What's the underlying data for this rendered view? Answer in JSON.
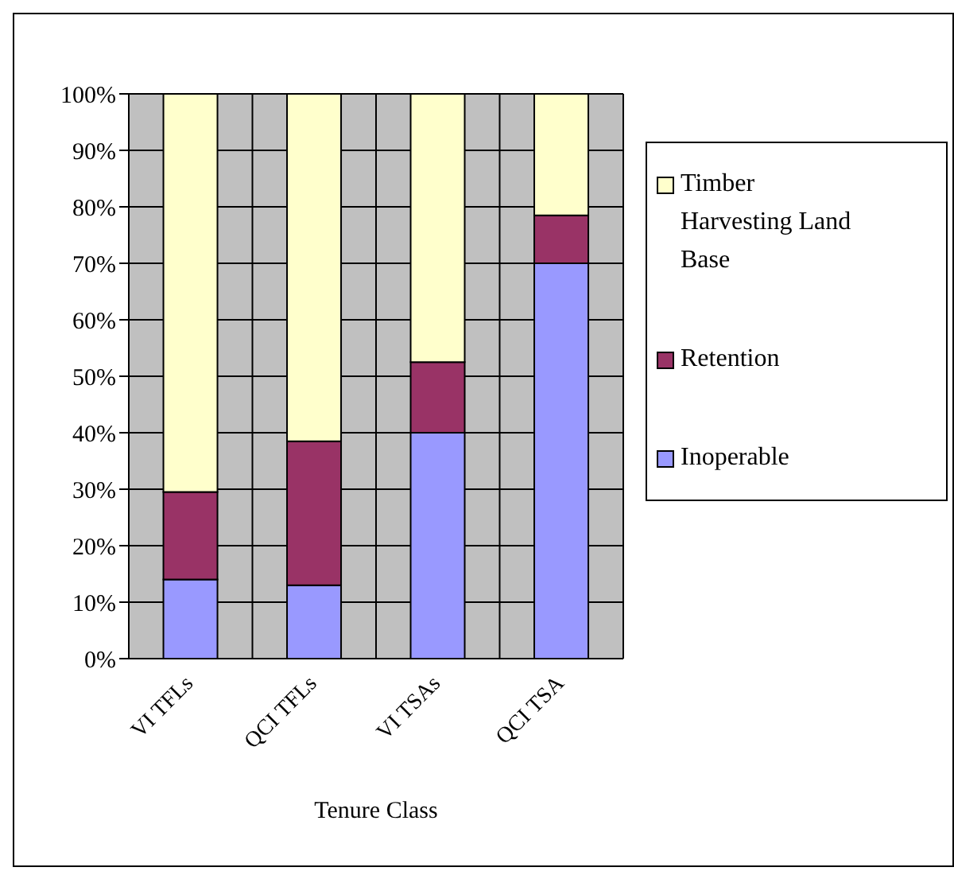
{
  "chart_data": {
    "type": "bar",
    "stacked": true,
    "xlabel": "Tenure Class",
    "categories": [
      "VI TFLs",
      "QCI TFLs",
      "VI TSAs",
      "QCI TSA"
    ],
    "series": [
      {
        "name": "Inoperable",
        "color": "#9999ff",
        "values": [
          14,
          13,
          40,
          70
        ]
      },
      {
        "name": "Retention",
        "color": "#993366",
        "values": [
          15.5,
          25.5,
          12.5,
          8.5
        ]
      },
      {
        "name": "Timber Harvesting Land Base",
        "color": "#ffffcc",
        "values": [
          70.5,
          61.5,
          47.5,
          21.5
        ]
      }
    ],
    "ylim": [
      0,
      100
    ],
    "yticks": [
      {
        "value": 0,
        "label": "0%"
      },
      {
        "value": 10,
        "label": "10%"
      },
      {
        "value": 20,
        "label": "20%"
      },
      {
        "value": 30,
        "label": "30%"
      },
      {
        "value": 40,
        "label": "40%"
      },
      {
        "value": 50,
        "label": "50%"
      },
      {
        "value": 60,
        "label": "60%"
      },
      {
        "value": 70,
        "label": "70%"
      },
      {
        "value": 80,
        "label": "80%"
      },
      {
        "value": 90,
        "label": "90%"
      },
      {
        "value": 100,
        "label": "100%"
      }
    ],
    "grid": true,
    "legend": "right"
  }
}
